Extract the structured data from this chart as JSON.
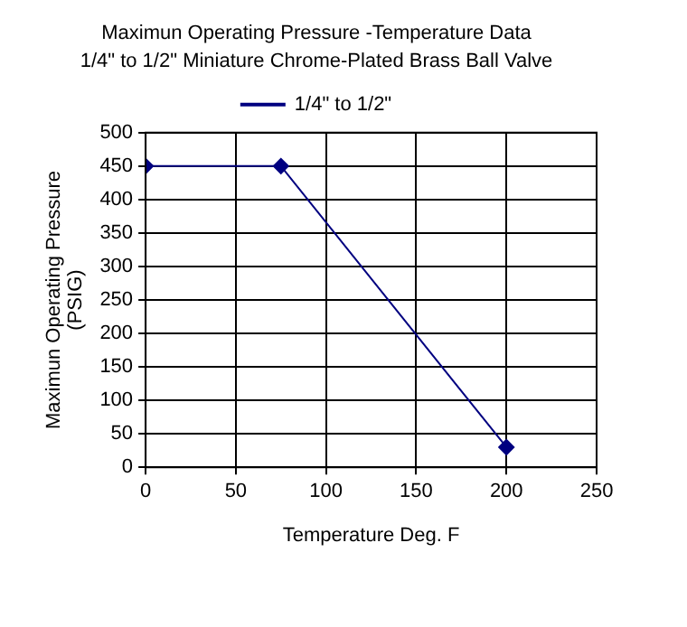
{
  "chart_data": {
    "type": "line",
    "title": "Maximun Operating Pressure -Temperature Data",
    "subtitle": "1/4\" to 1/2\" Miniature Chrome-Plated Brass Ball Valve",
    "xlabel": "Temperature Deg. F",
    "ylabel": "Maximun Operating Pressure (PSIG)",
    "series": [
      {
        "name": "1/4\" to 1/2\"",
        "color": "#000080",
        "x": [
          0,
          75,
          200
        ],
        "values": [
          450,
          450,
          30
        ]
      }
    ],
    "xlim": [
      0,
      250
    ],
    "xticks": [
      0,
      50,
      100,
      150,
      200,
      250
    ],
    "ylim": [
      0,
      500
    ],
    "yticks": [
      0,
      50,
      100,
      150,
      200,
      250,
      300,
      350,
      400,
      450,
      500
    ],
    "grid": true,
    "legend": "top",
    "marker": "diamond",
    "line_style": "solid"
  }
}
